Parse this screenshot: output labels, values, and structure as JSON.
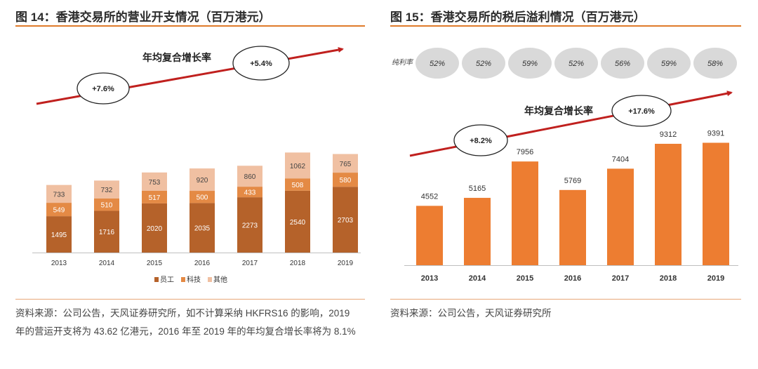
{
  "left": {
    "title": "图 14：香港交易所的营业开支情况（百万港元）",
    "cagr_label": "年均复合增长率",
    "cagr_values": [
      "+7.6%",
      "+5.4%"
    ],
    "source": "资料来源：公司公告，天风证券研究所，如不计算采纳 HKFRS16 的影响，2019 年的营运开支将为 43.62 亿港元，2016 年至 2019 年的年均复合增长率将为 8.1%",
    "colors": {
      "员工": "#b5622a",
      "科技": "#e48a45",
      "其他": "#f0c0a2"
    }
  },
  "right": {
    "title": "图 15：香港交易所的税后溢利情况（百万港元）",
    "cagr_label": "年均复合增长率",
    "cagr_values": [
      "+8.2%",
      "+17.6%"
    ],
    "margin_label": "纯利率",
    "margins": [
      "52%",
      "52%",
      "59%",
      "52%",
      "56%",
      "59%",
      "58%"
    ],
    "source": "资料来源：公司公告，天风证券研究所",
    "colors": {
      "bar": "#ed7d31"
    }
  },
  "chart_data": [
    {
      "type": "bar",
      "stacked": true,
      "title": "图 14：香港交易所的营业开支情况（百万港元）",
      "categories": [
        "2013",
        "2014",
        "2015",
        "2016",
        "2017",
        "2018",
        "2019"
      ],
      "series": [
        {
          "name": "员工",
          "values": [
            1495,
            1716,
            2020,
            2035,
            2273,
            2540,
            2703
          ]
        },
        {
          "name": "科技",
          "values": [
            549,
            510,
            517,
            500,
            433,
            508,
            580
          ]
        },
        {
          "name": "其他",
          "values": [
            733,
            732,
            753,
            920,
            860,
            1062,
            765
          ]
        }
      ],
      "legend": "bottom",
      "grid": false
    },
    {
      "type": "bar",
      "title": "图 15：香港交易所的税后溢利情况（百万港元）",
      "categories": [
        "2013",
        "2014",
        "2015",
        "2016",
        "2017",
        "2018",
        "2019"
      ],
      "values": [
        4552,
        5165,
        7956,
        5769,
        7404,
        9312,
        9391
      ],
      "grid": false
    }
  ]
}
